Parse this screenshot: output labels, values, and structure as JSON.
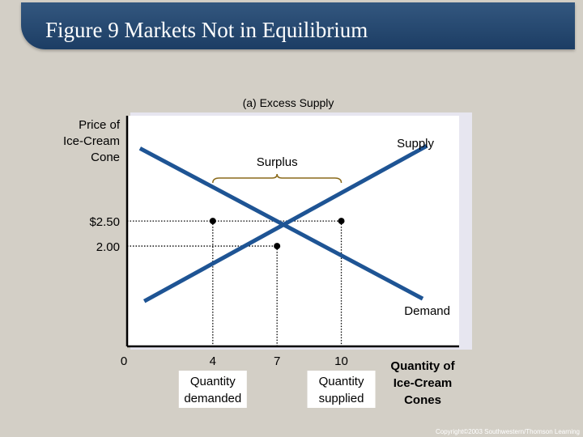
{
  "header": {
    "title": "Figure 9 Markets Not in Equilibrium"
  },
  "footer": {
    "copyright": "Copyright©2003  Southwestern/Thomson Learning"
  },
  "colors": {
    "background": "#d3cfc6",
    "title_bar": "#1c3d64",
    "plot_background": "#ffffff",
    "curve": "#1e5494",
    "point": "#000000",
    "guide": "#000000"
  },
  "chart_data": {
    "type": "line",
    "title": "(a) Excess Supply",
    "ylabel": [
      "Price of",
      "Ice-Cream",
      "Cone"
    ],
    "xlabel": [
      "Quantity of",
      "Ice-Cream",
      "Cones"
    ],
    "xlim": [
      0,
      15.5
    ],
    "ylim": [
      0,
      4.6
    ],
    "grid": false,
    "origin_label": "0",
    "x_ticks": [
      {
        "value": 4,
        "label": "4",
        "note": [
          "Quantity",
          "demanded"
        ]
      },
      {
        "value": 7,
        "label": "7",
        "note": []
      },
      {
        "value": 10,
        "label": "10",
        "note": [
          "Quantity",
          "supplied"
        ]
      }
    ],
    "y_ticks": [
      {
        "value": 2.5,
        "label": "$2.50"
      },
      {
        "value": 2.0,
        "label": "2.00"
      }
    ],
    "series": [
      {
        "name": "Supply",
        "x": [
          0.8,
          14.0
        ],
        "y": [
          0.9,
          4.0
        ]
      },
      {
        "name": "Demand",
        "x": [
          0.6,
          13.8
        ],
        "y": [
          3.95,
          0.95
        ]
      }
    ],
    "points": [
      {
        "x": 4,
        "y": 2.5
      },
      {
        "x": 10,
        "y": 2.5
      },
      {
        "x": 7,
        "y": 2.0
      }
    ],
    "annotations": [
      {
        "label": "Surplus",
        "x_from": 4,
        "x_to": 10,
        "y": 2.5
      }
    ]
  }
}
